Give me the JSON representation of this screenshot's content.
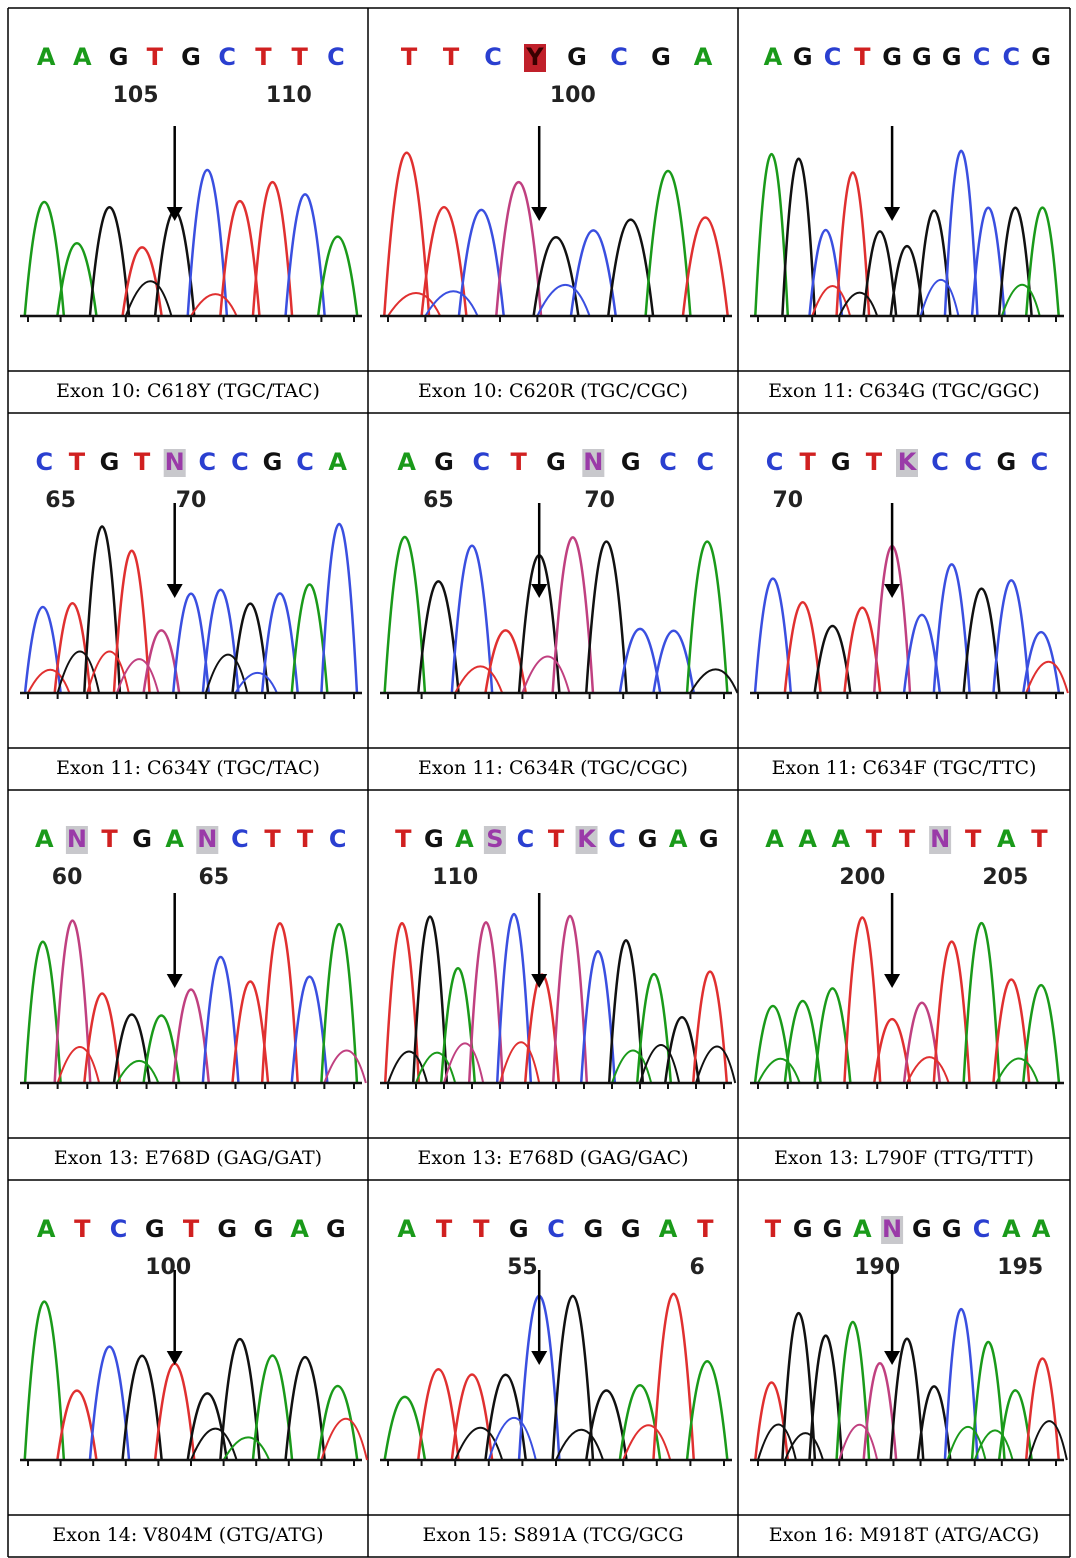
{
  "panels": [
    {
      "bases": [
        "A",
        "A",
        "G",
        "T",
        "G",
        "C",
        "T",
        "T",
        "C"
      ],
      "numbers": [
        "105",
        "110"
      ],
      "caption": "Exon 10: C618Y (TGC/TAC)"
    },
    {
      "bases": [
        "T",
        "T",
        "C",
        "Y",
        "G",
        "C",
        "G",
        "A"
      ],
      "numbers": [
        "100"
      ],
      "caption": "Exon 10: C620R (TGC/CGC)"
    },
    {
      "bases": [
        "A",
        "G",
        "C",
        "T",
        "G",
        "G",
        "G",
        "C",
        "C",
        "G"
      ],
      "numbers": [],
      "caption": "Exon 11: C634G (TGC/GGC)"
    },
    {
      "bases": [
        "C",
        "T",
        "G",
        "T",
        "N",
        "C",
        "C",
        "G",
        "C",
        "A"
      ],
      "numbers": [
        "65",
        "70"
      ],
      "caption": "Exon 11: C634Y (TGC/TAC)"
    },
    {
      "bases": [
        "A",
        "G",
        "C",
        "T",
        "G",
        "N",
        "G",
        "C",
        "C"
      ],
      "numbers": [
        "65",
        "70"
      ],
      "caption": "Exon 11: C634R (TGC/CGC)"
    },
    {
      "bases": [
        "C",
        "T",
        "G",
        "T",
        "K",
        "C",
        "C",
        "G",
        "C"
      ],
      "numbers": [
        "70"
      ],
      "caption": "Exon 11: C634F (TGC/TTC)"
    },
    {
      "bases": [
        "A",
        "N",
        "T",
        "G",
        "A",
        "N",
        "C",
        "T",
        "T",
        "C"
      ],
      "numbers": [
        "60",
        "65"
      ],
      "caption": "Exon 13: E768D (GAG/GAT)"
    },
    {
      "bases": [
        "T",
        "G",
        "A",
        "S",
        "C",
        "T",
        "K",
        "C",
        "G",
        "A",
        "G"
      ],
      "numbers": [
        "110"
      ],
      "caption": "Exon 13: E768D (GAG/GAC)"
    },
    {
      "bases": [
        "A",
        "A",
        "A",
        "T",
        "T",
        "N",
        "T",
        "A",
        "T"
      ],
      "numbers": [
        "200",
        "205"
      ],
      "caption": "Exon 13: L790F (TTG/TTT)"
    },
    {
      "bases": [
        "A",
        "T",
        "C",
        "G",
        "T",
        "G",
        "G",
        "A",
        "G"
      ],
      "numbers": [
        "100"
      ],
      "caption": "Exon 14: V804M (GTG/ATG)"
    },
    {
      "bases": [
        "A",
        "T",
        "T",
        "G",
        "C",
        "G",
        "G",
        "A",
        "T"
      ],
      "numbers": [
        "55",
        "6"
      ],
      "caption": "Exon 15: S891A (TCG/GCG"
    },
    {
      "bases": [
        "T",
        "G",
        "G",
        "A",
        "N",
        "G",
        "G",
        "C",
        "A",
        "A"
      ],
      "numbers": [
        "190",
        "195"
      ],
      "caption": "Exon 16: M918T (ATG/ACG)"
    }
  ]
}
